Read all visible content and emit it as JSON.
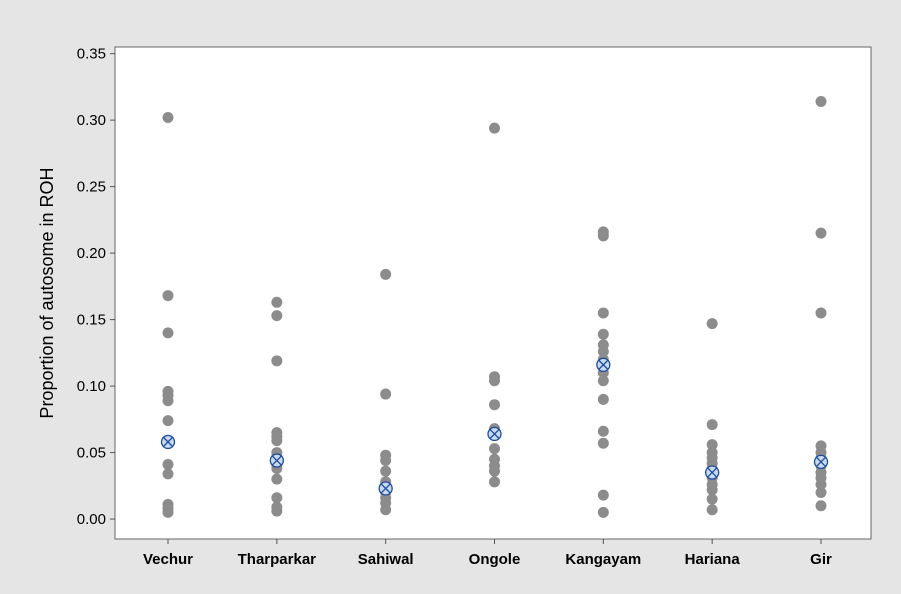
{
  "chart_data": {
    "type": "scatter",
    "title": "",
    "xlabel": "",
    "ylabel": "Proportion of autosome in ROH",
    "categories": [
      "Vechur",
      "Tharparkar",
      "Sahiwal",
      "Ongole",
      "Kangayam",
      "Hariana",
      "Gir"
    ],
    "ylim": [
      -0.015,
      0.355
    ],
    "yticks": [
      0.0,
      0.05,
      0.1,
      0.15,
      0.2,
      0.25,
      0.3,
      0.35
    ],
    "ytick_labels": [
      "0.00",
      "0.05",
      "0.10",
      "0.15",
      "0.20",
      "0.25",
      "0.30",
      "0.35"
    ],
    "grid": false,
    "legend": "none",
    "series": [
      {
        "values": [
          [
            0.302,
            0.168,
            0.14,
            0.096,
            0.093,
            0.089,
            0.074,
            0.041,
            0.034,
            0.011,
            0.008,
            0.005
          ],
          [
            0.163,
            0.153,
            0.119,
            0.065,
            0.062,
            0.059,
            0.05,
            0.047,
            0.041,
            0.038,
            0.03,
            0.016,
            0.009,
            0.006
          ],
          [
            0.184,
            0.094,
            0.048,
            0.044,
            0.036,
            0.028,
            0.02,
            0.016,
            0.012,
            0.007
          ],
          [
            0.294,
            0.107,
            0.104,
            0.086,
            0.068,
            0.064,
            0.053,
            0.045,
            0.04,
            0.036,
            0.028
          ],
          [
            0.216,
            0.213,
            0.155,
            0.139,
            0.131,
            0.126,
            0.12,
            0.114,
            0.11,
            0.104,
            0.09,
            0.066,
            0.057,
            0.018,
            0.005
          ],
          [
            0.147,
            0.071,
            0.056,
            0.05,
            0.046,
            0.042,
            0.038,
            0.031,
            0.026,
            0.022,
            0.015,
            0.007
          ],
          [
            0.314,
            0.215,
            0.155,
            0.055,
            0.05,
            0.046,
            0.04,
            0.035,
            0.031,
            0.026,
            0.02,
            0.01
          ]
        ]
      }
    ],
    "means": [
      0.058,
      0.044,
      0.023,
      0.064,
      0.116,
      0.035,
      0.043
    ],
    "colors": {
      "points": "#8c8c8c",
      "mean_marker": "#1f4e9c",
      "mean_fill": "#c9d9f0",
      "background": "#e5e5e5",
      "plot_area": "#ffffff"
    }
  }
}
